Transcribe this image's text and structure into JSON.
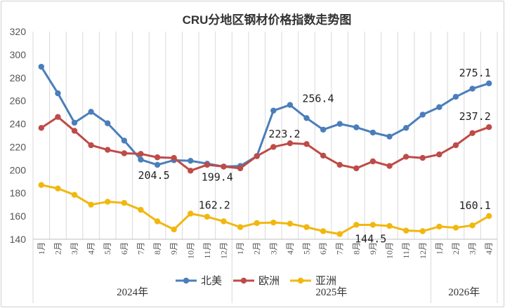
{
  "chart_data": {
    "type": "line",
    "title": "CRU分地区钢材价格指数走势图",
    "ylim": [
      140,
      320
    ],
    "yticks": [
      140,
      160,
      180,
      200,
      220,
      240,
      260,
      280,
      300,
      320
    ],
    "grid": "vertical",
    "legend_position": "bottom",
    "categories": [
      "1月",
      "2月",
      "3月",
      "4月",
      "5月",
      "6月",
      "7月",
      "8月",
      "9月",
      "10月",
      "11月",
      "12月",
      "1月",
      "2月",
      "3月",
      "4月",
      "5月",
      "6月",
      "7月",
      "8月",
      "9月",
      "10月",
      "11月",
      "12月",
      "1月",
      "2月",
      "3月",
      "4月"
    ],
    "year_groups": [
      {
        "label": "2024年",
        "start": 0,
        "end": 11
      },
      {
        "label": "2025年",
        "start": 12,
        "end": 23
      },
      {
        "label": "2026年",
        "start": 24,
        "end": 27
      }
    ],
    "series": [
      {
        "name": "北美",
        "color": "#4a7ebb",
        "values": [
          289.5,
          266.5,
          241.0,
          250.5,
          240.5,
          225.5,
          209.0,
          204.5,
          208.5,
          208.0,
          205.5,
          203.0,
          203.5,
          212.0,
          251.5,
          256.4,
          245.0,
          235.0,
          240.0,
          237.0,
          232.5,
          229.0,
          236.5,
          248.0,
          254.5,
          263.5,
          270.5,
          275.1
        ]
      },
      {
        "name": "欧洲",
        "color": "#be4b48",
        "values": [
          236.5,
          246.0,
          234.0,
          221.5,
          217.5,
          214.5,
          214.0,
          211.0,
          210.5,
          199.4,
          204.5,
          203.0,
          201.5,
          212.0,
          220.0,
          223.2,
          222.5,
          212.5,
          204.5,
          201.5,
          207.5,
          203.5,
          211.5,
          210.5,
          213.5,
          221.5,
          232.0,
          237.2
        ]
      },
      {
        "name": "亚洲",
        "color": "#f2b70f",
        "values": [
          187.0,
          184.0,
          178.5,
          170.0,
          172.5,
          171.5,
          165.5,
          155.5,
          148.5,
          162.2,
          159.5,
          155.5,
          150.5,
          154.0,
          154.5,
          153.5,
          150.5,
          147.0,
          144.5,
          152.5,
          152.5,
          151.5,
          147.5,
          147.0,
          151.0,
          150.0,
          152.0,
          160.1
        ]
      }
    ],
    "data_labels": [
      {
        "series": 0,
        "index": 7,
        "text": "204.5"
      },
      {
        "series": 1,
        "index": 9,
        "text": "199.4"
      },
      {
        "series": 0,
        "index": 15,
        "text": "256.4"
      },
      {
        "series": 1,
        "index": 15,
        "text": "223.2"
      },
      {
        "series": 2,
        "index": 9,
        "text": "162.2"
      },
      {
        "series": 2,
        "index": 18,
        "text": "144.5"
      },
      {
        "series": 0,
        "index": 27,
        "text": "275.1"
      },
      {
        "series": 1,
        "index": 27,
        "text": "237.2"
      },
      {
        "series": 2,
        "index": 27,
        "text": "160.1"
      }
    ]
  }
}
